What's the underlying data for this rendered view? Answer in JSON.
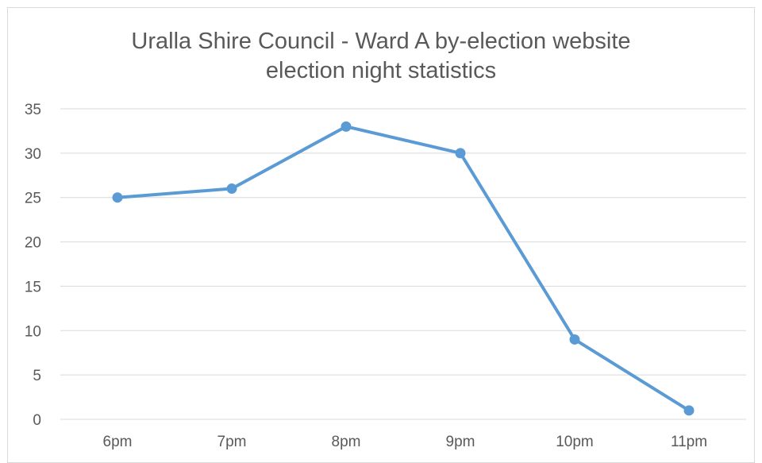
{
  "chart_data": {
    "type": "line",
    "title_lines": [
      "Uralla Shire Council - Ward A by-election website",
      "election night statistics"
    ],
    "xlabel": "",
    "ylabel": "",
    "categories": [
      "6pm",
      "7pm",
      "8pm",
      "9pm",
      "10pm",
      "11pm"
    ],
    "series": [
      {
        "values": [
          25,
          26,
          33,
          30,
          9,
          1
        ],
        "color": "#5b9bd5"
      }
    ],
    "ylim": [
      0,
      35
    ],
    "yticks": [
      0,
      5,
      10,
      15,
      20,
      25,
      30,
      35
    ],
    "grid": true,
    "legend": "none"
  }
}
